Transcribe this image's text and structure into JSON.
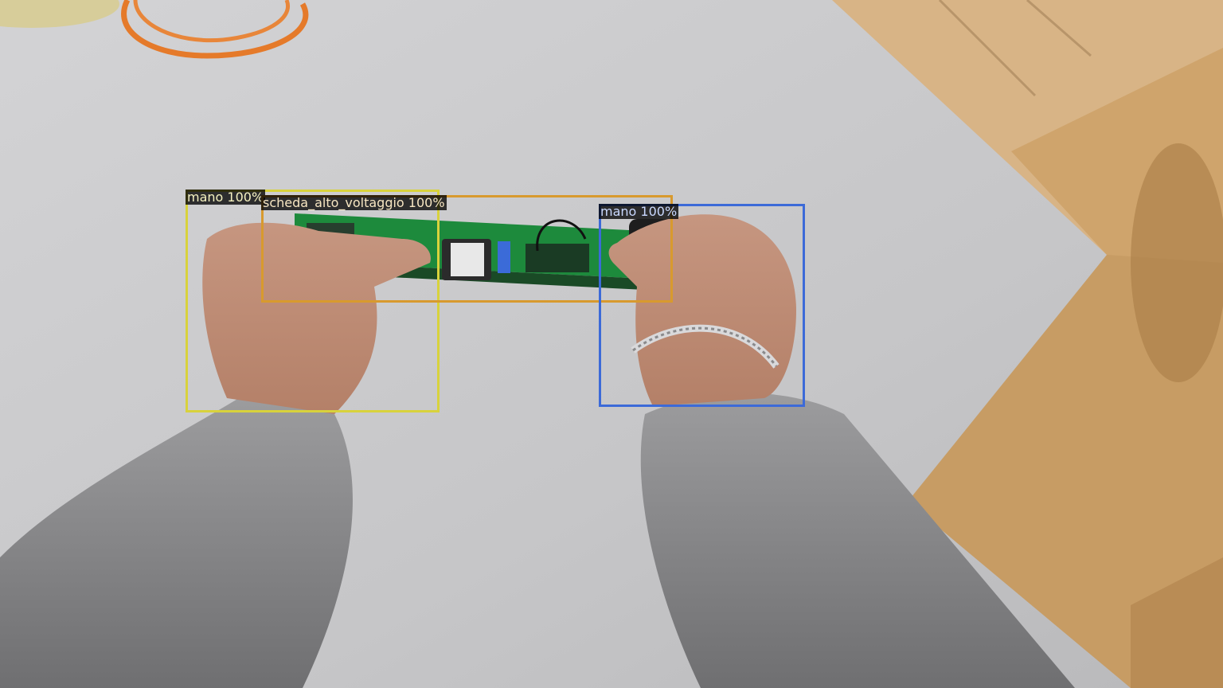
{
  "detections": [
    {
      "label": "mano 100%",
      "class_name": "mano",
      "score": "100%",
      "color": "#d8d23c",
      "text_color": "#f6f2c0"
    },
    {
      "label": "scheda_alto_voltaggio 100%",
      "class_name": "scheda_alto_voltaggio",
      "score": "100%",
      "color": "#d89a2e",
      "text_color": "#f7e6c2"
    },
    {
      "label": "mano 100%",
      "class_name": "mano",
      "score": "100%",
      "color": "#3c6ad8",
      "text_color": "#c9d8ff"
    }
  ]
}
